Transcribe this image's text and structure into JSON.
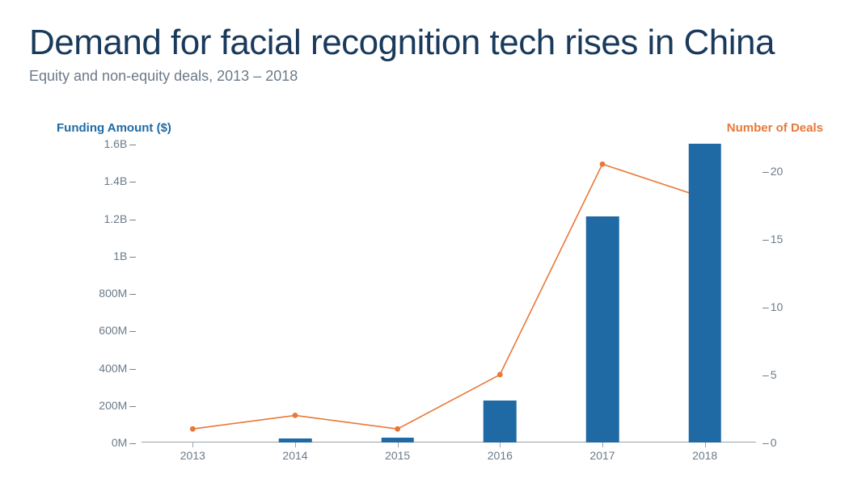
{
  "header": {
    "title": "Demand for facial recognition tech rises in China",
    "subtitle": "Equity and non-equity deals, 2013 – 2018",
    "title_color": "#1a3a5c",
    "subtitle_color": "#6b7a89",
    "title_fontsize": 44,
    "subtitle_fontsize": 18
  },
  "chart": {
    "type": "bar+line",
    "background_color": "#ffffff",
    "axis_line_color": "#9aa5ad",
    "tick_text_color": "#6b7a89",
    "left_axis": {
      "label": "Funding Amount ($)",
      "label_color": "#1f6aa5",
      "min": 0,
      "max": 1600,
      "ticks": [
        {
          "v": 0,
          "label": "0M"
        },
        {
          "v": 200,
          "label": "200M"
        },
        {
          "v": 400,
          "label": "400M"
        },
        {
          "v": 600,
          "label": "600M"
        },
        {
          "v": 800,
          "label": "800M"
        },
        {
          "v": 1000,
          "label": "1B"
        },
        {
          "v": 1200,
          "label": "1.2B"
        },
        {
          "v": 1400,
          "label": "1.4B"
        },
        {
          "v": 1600,
          "label": "1.6B"
        }
      ]
    },
    "right_axis": {
      "label": "Number of Deals",
      "label_color": "#e87838",
      "min": 0,
      "max": 22,
      "ticks": [
        {
          "v": 0,
          "label": "0"
        },
        {
          "v": 5,
          "label": "5"
        },
        {
          "v": 10,
          "label": "10"
        },
        {
          "v": 15,
          "label": "15"
        },
        {
          "v": 20,
          "label": "20"
        }
      ]
    },
    "categories": [
      "2013",
      "2014",
      "2015",
      "2016",
      "2017",
      "2018"
    ],
    "bars": {
      "values_millions": [
        0,
        20,
        25,
        225,
        1210,
        1600
      ],
      "color": "#1f6aa5",
      "width_frac": 0.32
    },
    "line": {
      "values_deals": [
        1,
        2,
        1,
        5,
        20.5,
        18
      ],
      "color": "#e87838",
      "stroke_width": 1.6,
      "marker_radius": 3.4
    }
  }
}
